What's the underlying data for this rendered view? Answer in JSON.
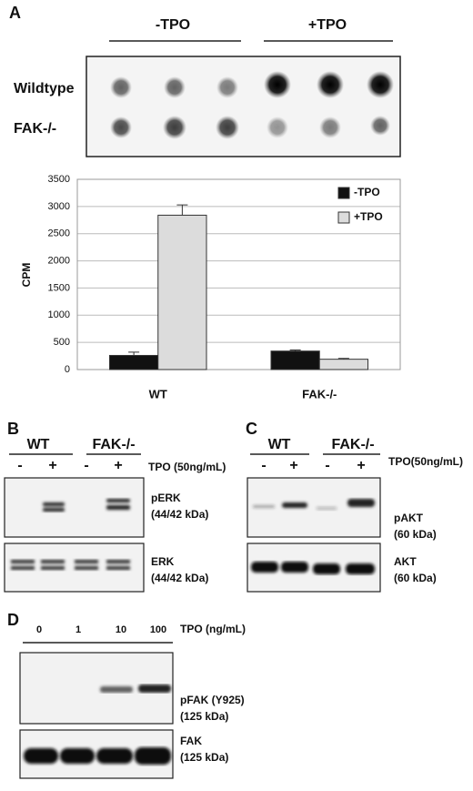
{
  "panels": [
    "A",
    "B",
    "C",
    "D"
  ],
  "dot_blot": {
    "conditions": [
      "-TPO",
      "+TPO"
    ],
    "rows": [
      "Wildtype",
      "FAK-/-"
    ]
  },
  "chart_data": {
    "type": "bar",
    "y_label": "CPM",
    "categories": [
      "WT",
      "FAK-/-"
    ],
    "series": [
      {
        "name": "-TPO",
        "color": "#111111",
        "values": [
          260,
          340
        ],
        "errors": [
          60,
          20
        ]
      },
      {
        "name": "+TPO",
        "color": "#dcdcdc",
        "values": [
          2840,
          190
        ],
        "errors": [
          190,
          15
        ]
      }
    ],
    "ylim": [
      0,
      3500
    ],
    "yticks": [
      0,
      500,
      1000,
      1500,
      2000,
      2500,
      3000,
      3500
    ],
    "grid": true,
    "legend": "upper right"
  },
  "blot_b": {
    "groups": [
      "WT",
      "FAK-/-"
    ],
    "treatments": [
      "-",
      "+",
      "-",
      "+"
    ],
    "condition": "TPO (50ng/mL)",
    "bands": [
      [
        "pERK",
        "(44/42 kDa)"
      ],
      [
        "ERK",
        "(44/42 kDa)"
      ]
    ]
  },
  "blot_c": {
    "groups": [
      "WT",
      "FAK-/-"
    ],
    "treatments": [
      "-",
      "+",
      "-",
      "+"
    ],
    "condition": "TPO(50ng/mL)",
    "bands": [
      [
        "pAKT",
        "(60 kDa)"
      ],
      [
        "AKT",
        "(60 kDa)"
      ]
    ]
  },
  "blot_d": {
    "doses": [
      "0",
      "1",
      "10",
      "100"
    ],
    "condition": "TPO (ng/mL)",
    "bands": [
      [
        "pFAK (Y925)",
        "(125 kDa)"
      ],
      [
        "FAK",
        "(125 kDa)"
      ]
    ]
  }
}
